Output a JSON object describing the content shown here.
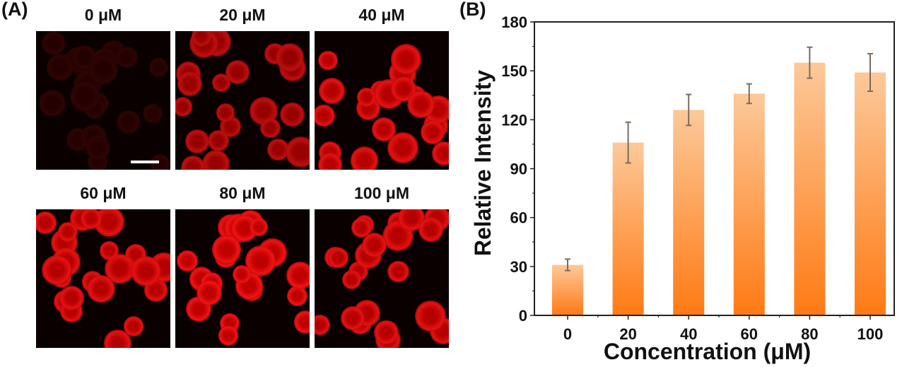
{
  "panel_a": {
    "label": "(A)",
    "tiles": [
      {
        "label": "0 μM",
        "brightness": 0.18
      },
      {
        "label": "20 μM",
        "brightness": 0.75
      },
      {
        "label": "40 μM",
        "brightness": 0.9
      },
      {
        "label": "60 μM",
        "brightness": 0.9
      },
      {
        "label": "80 μM",
        "brightness": 0.95
      },
      {
        "label": "100 μM",
        "brightness": 0.9
      }
    ]
  },
  "panel_b": {
    "label": "(B)"
  },
  "chart_data": {
    "type": "bar",
    "title": "",
    "xlabel": "Concentration (μM)",
    "ylabel": "Relative Intensity",
    "categories": [
      "0",
      "20",
      "40",
      "60",
      "80",
      "100"
    ],
    "values": [
      31,
      106,
      126,
      136,
      155,
      149
    ],
    "errors": [
      3.5,
      12.5,
      9.5,
      6,
      9.5,
      11.5
    ],
    "ylim": [
      0,
      180
    ],
    "yticks": [
      0,
      30,
      60,
      90,
      120,
      150,
      180
    ],
    "grid": false,
    "bar_color_top": "#fcc99a",
    "bar_color_bottom": "#ff7a14",
    "error_color": "#7a6a60"
  }
}
